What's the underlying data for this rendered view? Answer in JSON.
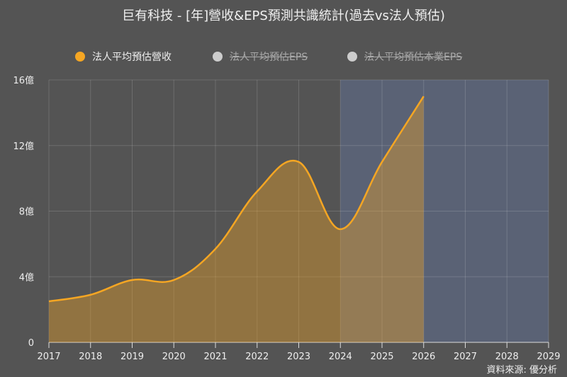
{
  "title": "巨有科技 - [年]營收&EPS預測共識統計(過去vs法人預估)",
  "legend": [
    {
      "label": "法人平均預估營收",
      "color": "#f5a623",
      "active": true
    },
    {
      "label": "法人平均預估EPS",
      "color": "#cccccc",
      "active": false
    },
    {
      "label": "法人平均預估本業EPS",
      "color": "#cccccc",
      "active": false
    }
  ],
  "source": "資料來源: 優分析",
  "chart_data": {
    "type": "area",
    "title": "巨有科技 - [年]營收&EPS預測共識統計(過去vs法人預估)",
    "x": [
      "2017",
      "2018",
      "2019",
      "2020",
      "2021",
      "2022",
      "2023",
      "2024",
      "2025",
      "2026",
      "2027",
      "2028",
      "2029"
    ],
    "series": [
      {
        "name": "法人平均預估營收",
        "unit": "億",
        "values": [
          2.5,
          2.9,
          3.8,
          3.8,
          5.7,
          9.2,
          11.0,
          6.9,
          11.0,
          15.0,
          null,
          null,
          null
        ]
      },
      {
        "name": "法人平均預估EPS",
        "values": [],
        "hidden": true
      },
      {
        "name": "法人平均預估本業EPS",
        "values": [],
        "hidden": true
      }
    ],
    "yticks": [
      "0",
      "4億",
      "8億",
      "12億",
      "16億"
    ],
    "ylim": [
      0,
      16
    ],
    "forecast_region": [
      "2024",
      "2029"
    ],
    "grid": true,
    "legend_position": "top",
    "line_color": "#f5a623",
    "forecast_bg": "#5a6275"
  }
}
